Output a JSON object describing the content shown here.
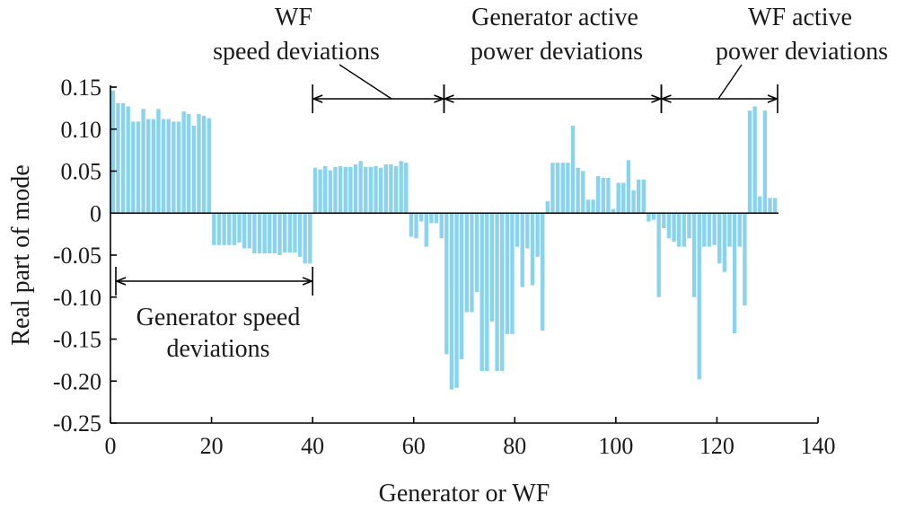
{
  "chart_data": {
    "type": "bar",
    "title": "",
    "xlabel": "Generator or WF",
    "ylabel": "Real part of mode",
    "xlim": [
      0,
      140
    ],
    "ylim": [
      -0.25,
      0.15
    ],
    "xticks": [
      0,
      20,
      40,
      60,
      80,
      100,
      120,
      140
    ],
    "xtick_labels": [
      "0",
      "20",
      "40",
      "60",
      "80",
      "100",
      "120",
      "140"
    ],
    "yticks": [
      0.15,
      0.1,
      0.05,
      0,
      -0.05,
      -0.1,
      -0.15,
      -0.2,
      -0.25
    ],
    "ytick_labels": [
      "0.15",
      "0.10",
      "0.05",
      "0",
      "-0.05",
      "-0.10",
      "-0.15",
      "-0.20",
      "-0.25"
    ],
    "bar_color": "#87d3f0",
    "x": [
      1,
      2,
      3,
      4,
      5,
      6,
      7,
      8,
      9,
      10,
      11,
      12,
      13,
      14,
      15,
      16,
      17,
      18,
      19,
      20,
      21,
      22,
      23,
      24,
      25,
      26,
      27,
      28,
      29,
      30,
      31,
      32,
      33,
      34,
      35,
      36,
      37,
      38,
      39,
      40,
      41,
      42,
      43,
      44,
      45,
      46,
      47,
      48,
      49,
      50,
      51,
      52,
      53,
      54,
      55,
      56,
      57,
      58,
      59,
      60,
      61,
      62,
      63,
      64,
      65,
      66,
      67,
      68,
      69,
      70,
      71,
      72,
      73,
      74,
      75,
      76,
      77,
      78,
      79,
      80,
      81,
      82,
      83,
      84,
      85,
      86,
      87,
      88,
      89,
      90,
      91,
      92,
      93,
      94,
      95,
      96,
      97,
      98,
      99,
      100,
      101,
      102,
      103,
      104,
      105,
      106,
      107,
      108,
      109,
      110,
      111,
      112,
      113,
      114,
      115,
      116,
      117,
      118,
      119,
      120,
      121,
      122,
      123,
      124,
      125,
      126,
      127,
      128,
      129,
      130,
      131,
      132
    ],
    "values": [
      0.146,
      0.131,
      0.131,
      0.127,
      0.109,
      0.109,
      0.124,
      0.112,
      0.112,
      0.124,
      0.112,
      0.112,
      0.109,
      0.109,
      0.121,
      0.118,
      0.104,
      0.118,
      0.116,
      0.113,
      -0.038,
      -0.038,
      -0.038,
      -0.038,
      -0.038,
      -0.035,
      -0.042,
      -0.042,
      -0.048,
      -0.048,
      -0.048,
      -0.048,
      -0.048,
      -0.05,
      -0.047,
      -0.047,
      -0.047,
      -0.052,
      -0.06,
      -0.06,
      0.054,
      0.052,
      0.056,
      0.051,
      0.055,
      0.056,
      0.055,
      0.055,
      0.058,
      0.062,
      0.055,
      0.055,
      0.056,
      0.054,
      0.058,
      0.058,
      0.056,
      0.062,
      0.06,
      -0.028,
      -0.03,
      -0.01,
      -0.04,
      -0.012,
      -0.012,
      -0.03,
      -0.168,
      -0.21,
      -0.208,
      -0.174,
      -0.118,
      -0.118,
      -0.094,
      -0.188,
      -0.188,
      -0.129,
      -0.188,
      -0.188,
      -0.144,
      -0.144,
      -0.04,
      -0.088,
      -0.042,
      -0.086,
      -0.052,
      -0.14,
      0.014,
      0.06,
      0.06,
      0.06,
      0.06,
      0.104,
      0.054,
      0.05,
      0.016,
      0.016,
      0.044,
      0.042,
      0.042,
      0.005,
      0.036,
      0.036,
      0.063,
      0.027,
      0.04,
      0.04,
      -0.01,
      -0.008,
      -0.1,
      -0.018,
      -0.03,
      -0.034,
      -0.04,
      -0.04,
      -0.03,
      -0.1,
      -0.198,
      -0.04,
      -0.04,
      -0.038,
      -0.06,
      -0.07,
      -0.04,
      -0.143,
      -0.04,
      -0.11,
      0.122,
      0.127,
      0.02,
      0.122,
      0.018,
      0.018
    ]
  },
  "annotations": [
    {
      "lines": [
        "WF",
        "speed deviations"
      ],
      "span": [
        40,
        66
      ]
    },
    {
      "lines": [
        "Generator active",
        "power deviations"
      ],
      "span": [
        66,
        109
      ]
    },
    {
      "lines": [
        "WF active",
        "power deviations"
      ],
      "span": [
        109,
        132
      ]
    },
    {
      "lines": [
        "Generator speed",
        "deviations"
      ],
      "span": [
        0,
        40
      ]
    }
  ]
}
